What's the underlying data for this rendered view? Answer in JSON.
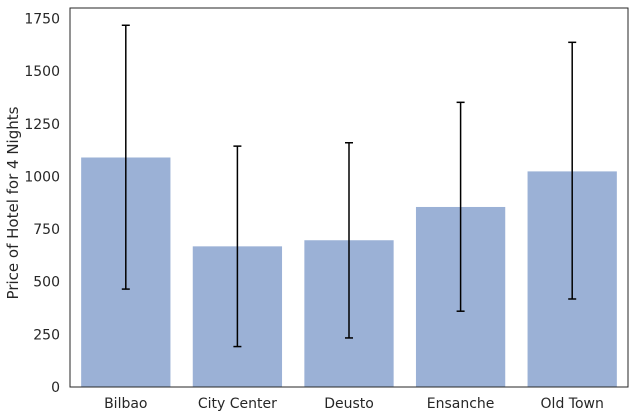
{
  "chart_data": {
    "type": "bar",
    "title": "",
    "xlabel": "",
    "ylabel": "Price of Hotel for 4 Nights",
    "categories": [
      "Bilbao",
      "City Center",
      "Deusto",
      "Ensanche",
      "Old Town"
    ],
    "values": [
      1090,
      668,
      697,
      855,
      1024
    ],
    "error_low": [
      465,
      192,
      233,
      360,
      418
    ],
    "error_high": [
      1718,
      1144,
      1160,
      1352,
      1637
    ],
    "ylim": [
      0,
      1800
    ],
    "yticks": [
      0,
      250,
      500,
      750,
      1000,
      1250,
      1500,
      1750
    ],
    "ytick_labels": [
      "0",
      "250",
      "500",
      "750",
      "1000",
      "1250",
      "1500",
      "1750"
    ],
    "grid": false,
    "colors": {
      "bar": "#9bb1d6",
      "error_bar": "#000000",
      "axis": "#262626"
    }
  }
}
